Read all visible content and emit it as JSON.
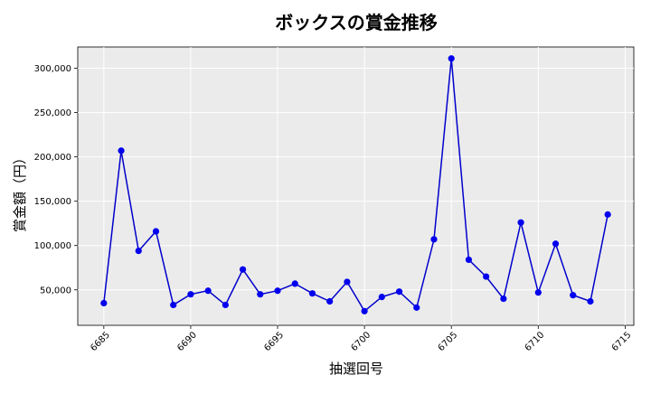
{
  "chart_data": {
    "type": "line",
    "title": "ボックスの賞金推移",
    "xlabel": "抽選回号",
    "ylabel": "賞金額（円）",
    "xlim": [
      6683.5,
      6715.5
    ],
    "ylim": [
      10000,
      324000
    ],
    "x_ticks": [
      6685,
      6690,
      6695,
      6700,
      6705,
      6710,
      6715
    ],
    "y_ticks": [
      50000,
      100000,
      150000,
      200000,
      250000,
      300000
    ],
    "y_tick_labels": [
      "50,000",
      "100,000",
      "150,000",
      "200,000",
      "250,000",
      "300,000"
    ],
    "grid": true,
    "line_color": "#0000cc",
    "marker_color": "#0000ee",
    "plot_background": "#ebebeb",
    "series": [
      {
        "x": [
          6685,
          6686,
          6687,
          6688,
          6689,
          6690,
          6691,
          6692,
          6693,
          6694,
          6695,
          6696,
          6697,
          6698,
          6699,
          6700,
          6701,
          6702,
          6703,
          6704,
          6705,
          6706,
          6707,
          6708,
          6709,
          6710,
          6711,
          6712,
          6713,
          6714
        ],
        "y": [
          35000,
          207000,
          94000,
          116000,
          33000,
          45000,
          49000,
          33000,
          73000,
          45000,
          49000,
          57000,
          46000,
          37000,
          59000,
          26000,
          42000,
          48000,
          30000,
          107000,
          311000,
          84000,
          65000,
          40000,
          126000,
          47000,
          102000,
          44000,
          37000,
          135000
        ]
      }
    ]
  }
}
